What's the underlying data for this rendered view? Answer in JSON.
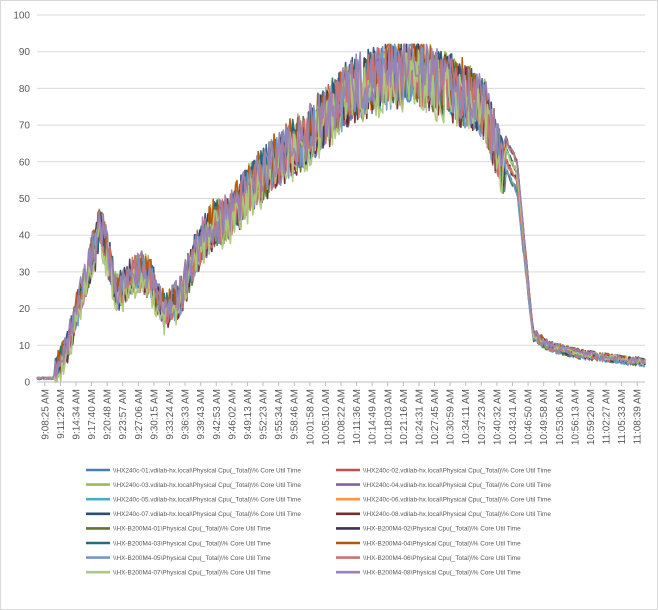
{
  "chart_data": {
    "type": "line",
    "title": "",
    "xlabel": "",
    "ylabel": "",
    "ylim": [
      0,
      100
    ],
    "yticks": [
      0,
      10,
      20,
      30,
      40,
      50,
      60,
      70,
      80,
      90,
      100
    ],
    "grid": "horizontal",
    "legend_position": "bottom",
    "categories": [
      "9:08:25 AM",
      "9:11:29 AM",
      "9:14:34 AM",
      "9:17:40 AM",
      "9:20:48 AM",
      "9:23:57 AM",
      "9:27:06 AM",
      "9:30:15 AM",
      "9:33:24 AM",
      "9:36:33 AM",
      "9:39:43 AM",
      "9:42:53 AM",
      "9:46:02 AM",
      "9:49:13 AM",
      "9:52:23 AM",
      "9:55:34 AM",
      "9:58:46 AM",
      "10:01:58 AM",
      "10:05:10 AM",
      "10:08:22 AM",
      "10:11:36 AM",
      "10:14:49 AM",
      "10:18:03 AM",
      "10:21:16 AM",
      "10:24:31 AM",
      "10:27:45 AM",
      "10:30:59 AM",
      "10:34:11 AM",
      "10:37:23 AM",
      "10:40:32 AM",
      "10:43:41 AM",
      "10:46:50 AM",
      "10:49:58 AM",
      "10:53:06 AM",
      "10:56:13 AM",
      "10:59:20 AM",
      "11:02:27 AM",
      "11:05:33 AM",
      "11:08:39 AM"
    ],
    "envelope": [
      1,
      1,
      11,
      28,
      42,
      24,
      30,
      29,
      19,
      24,
      36,
      43,
      45,
      51,
      56,
      61,
      64,
      67,
      72,
      77,
      80,
      82,
      84,
      85,
      84,
      82,
      80,
      78,
      74,
      60,
      52,
      12,
      9,
      8,
      7,
      6.5,
      6,
      5.5,
      5
    ],
    "series": [
      {
        "name": "\\\\HX240c-01.vdilab-hx.local\\Physical Cpu(_Total)\\% Core Util Time",
        "color": "#4a7ebb"
      },
      {
        "name": "\\\\HX240c-02.vdilab-hx.local\\Physical Cpu(_Total)\\% Core Util Time",
        "color": "#c0504d"
      },
      {
        "name": "\\\\HX240c-03.vdilab-hx.local\\Physical Cpu(_Total)\\% Core Util Time",
        "color": "#9bbb59"
      },
      {
        "name": "\\\\HX240c-04.vdilab-hx.local\\Physical Cpu(_Total)\\% Core Util Time",
        "color": "#8064a2"
      },
      {
        "name": "\\\\HX240c-05.vdilab-hx.local\\Physical Cpu(_Total)\\% Core Util Time",
        "color": "#4bacc6"
      },
      {
        "name": "\\\\HX240c-06.vdilab-hx.local\\Physical Cpu(_Total)\\% Core Util Time",
        "color": "#f79646"
      },
      {
        "name": "\\\\HX240c-07.vdilab-hx.local\\Physical Cpu(_Total)\\% Core Util Time",
        "color": "#2c4d75"
      },
      {
        "name": "\\\\HX240c-08.vdilab-hx.local\\Physical Cpu(_Total)\\% Core Util Time",
        "color": "#772c2a"
      },
      {
        "name": "\\\\HX-B200M4-01\\Physical Cpu(_Total)\\% Core Util Time",
        "color": "#5f7530"
      },
      {
        "name": "\\\\HX-B200M4-02\\Physical Cpu(_Total)\\% Core Util Time",
        "color": "#3f3151"
      },
      {
        "name": "\\\\HX-B200M4-03\\Physical Cpu(_Total)\\% Core Util Time",
        "color": "#276a7c"
      },
      {
        "name": "\\\\HX-B200M4-04\\Physical Cpu(_Total)\\% Core Util Time",
        "color": "#b65708"
      },
      {
        "name": "\\\\HX-B200M4-05\\Physical Cpu(_Total)\\% Core Util Time",
        "color": "#729aca"
      },
      {
        "name": "\\\\HX-B200M4-06\\Physical Cpu(_Total)\\% Core Util Time",
        "color": "#cd7371"
      },
      {
        "name": "\\\\HX-B200M4-07\\Physical Cpu(_Total)\\% Core Util Time",
        "color": "#afc97a"
      },
      {
        "name": "\\\\HX-B200M4-08\\Physical Cpu(_Total)\\% Core Util Time",
        "color": "#9983b5"
      }
    ]
  }
}
